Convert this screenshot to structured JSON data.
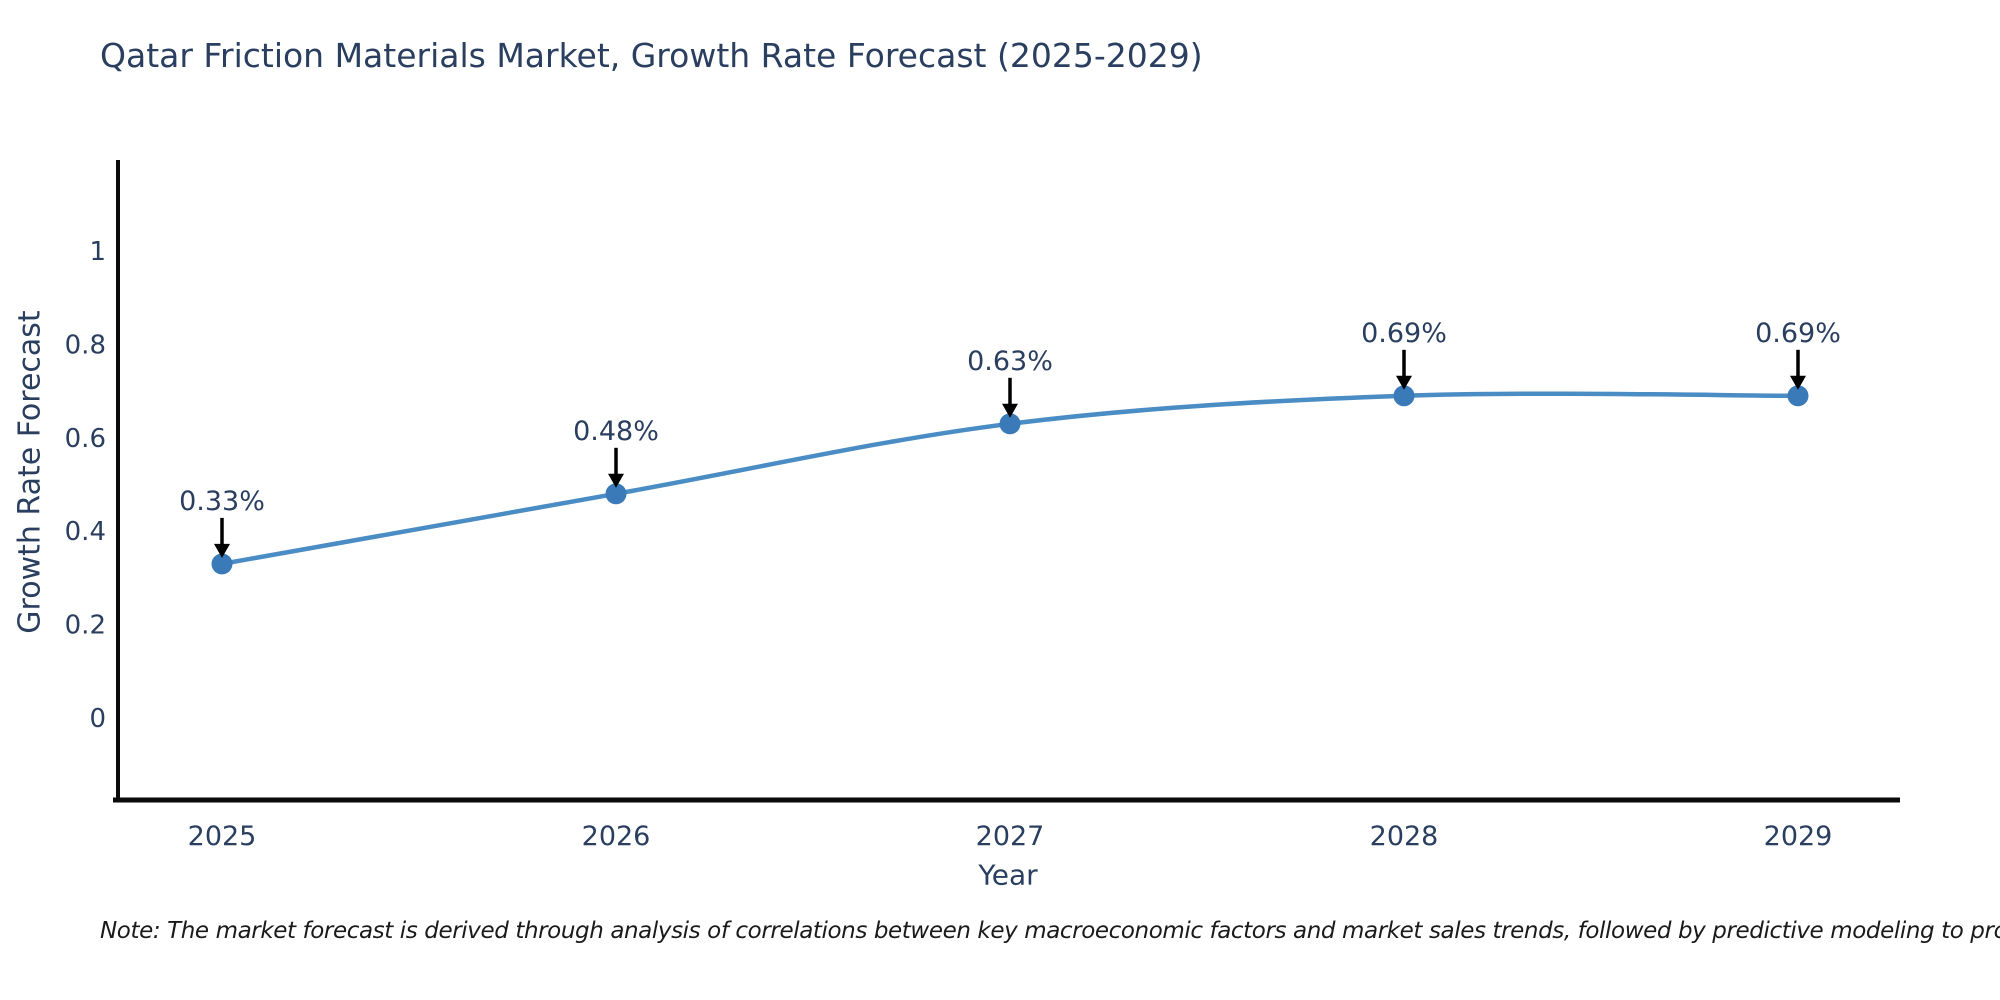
{
  "title": "Qatar Friction Materials Market, Growth Rate Forecast (2025-2029)",
  "note": "Note: The market forecast is derived through analysis of correlations between key macroeconomic factors and market sales trends, followed by predictive modeling to project future sales",
  "chart_data": {
    "type": "line",
    "title": "Qatar Friction Materials Market, Growth Rate Forecast (2025-2029)",
    "xlabel": "Year",
    "ylabel": "Growth Rate Forecast",
    "x": [
      2025,
      2026,
      2027,
      2028,
      2029
    ],
    "series": [
      {
        "name": "Growth Rate Forecast",
        "values": [
          0.33,
          0.48,
          0.63,
          0.69,
          0.69
        ]
      }
    ],
    "point_labels": [
      "0.33%",
      "0.48%",
      "0.63%",
      "0.69%",
      "0.69%"
    ],
    "yticks": [
      0,
      0.2,
      0.4,
      0.6,
      0.8,
      1
    ],
    "ytick_labels": [
      "0",
      "0.2",
      "0.4",
      "0.6",
      "0.8",
      "1"
    ],
    "ylim": [
      -0.18,
      1.2
    ],
    "xlim": [
      2024.74,
      2029.26
    ],
    "grid": false,
    "legend": "none",
    "line_shape": "spline",
    "colors": {
      "line": "#4a8cc4",
      "marker": "#3b7ab8",
      "axis": "#0a0a0a",
      "arrow": "#000000",
      "text": "#2a3f5f",
      "note_text": "#1a1a1a"
    }
  }
}
